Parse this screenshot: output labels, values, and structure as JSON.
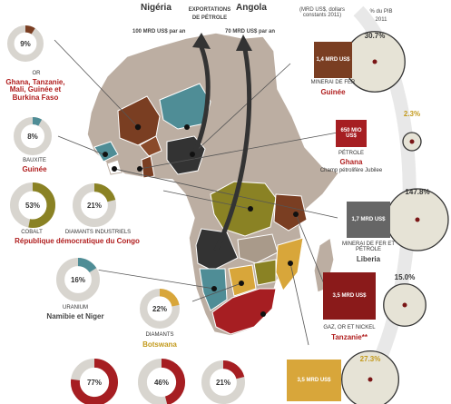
{
  "header": {
    "nigeria": "Nigéria",
    "angola": "Angola",
    "exports_title_1": "EXPORTATIONS",
    "exports_title_2": "DE PÉTROLE",
    "nigeria_value": "100 MRD US$ par an",
    "angola_value": "70 MRD US$ par an",
    "col_usd": "(MRD US$, dollars constants 2011)",
    "col_pib_1": "% du PIB",
    "col_pib_2": "2011"
  },
  "colors": {
    "land": "#bcaea2",
    "border": "#ffffff",
    "brown": "#7a3e22",
    "teal": "#4f8d96",
    "olive": "#8a8224",
    "dark": "#333333",
    "gold": "#d8a63a",
    "red": "#a61e22",
    "darkred": "#8a1a1a",
    "donut_bg": "#d8d5cf",
    "bubble": "#e6e3d6",
    "bubble_center": "#7a1616",
    "arc": "#e8e8e8"
  },
  "chart_data": [
    {
      "type": "pie",
      "title": "Mineral share donuts",
      "items": [
        {
          "value": 9,
          "label": "9%",
          "caption": "OR",
          "country": "Ghana, Tanzanie, Mali, Guinée et Burkina Faso",
          "color": "#7a3e22"
        },
        {
          "value": 8,
          "label": "8%",
          "caption": "BAUXITE",
          "country": "Guinée",
          "color": "#4f8d96"
        },
        {
          "value": 53,
          "label": "53%",
          "caption": "COBALT",
          "country": "",
          "color": "#8a8224"
        },
        {
          "value": 21,
          "label": "21%",
          "caption": "DIAMANTS INDUSTRIELS",
          "country": "",
          "color": "#8a8224"
        },
        {
          "value": 16,
          "label": "16%",
          "caption": "URANIUM",
          "country": "Namibie et Niger",
          "color": "#4f8d96"
        },
        {
          "value": 22,
          "label": "22%",
          "caption": "DIAMANTS",
          "country": "Botswana",
          "color": "#d8a63a"
        },
        {
          "value": 77,
          "label": "77%",
          "caption": "",
          "country": "",
          "color": "#a61e22"
        },
        {
          "value": 46,
          "label": "46%",
          "caption": "",
          "country": "",
          "color": "#a61e22"
        },
        {
          "value": 21,
          "label": "21%",
          "caption": "",
          "country": "",
          "color": "#a61e22"
        }
      ],
      "shared_caption": "République démocratique du Congo"
    },
    {
      "type": "scatter",
      "title": "% du PIB 2011",
      "series": [
        {
          "country": "Guinée",
          "value_label": "1,4 MRD US$",
          "resource": "MINERAI DE FER",
          "pib": 30.7,
          "pib_label": "30.7%"
        },
        {
          "country": "Ghana",
          "value_label": "650 MIO US$",
          "resource": "PÉTROLE",
          "note": "Champ pétrolifère Jubilee",
          "pib": 2.3,
          "pib_label": "2.3%"
        },
        {
          "country": "Liberia",
          "value_label": "1,7 MRD US$",
          "resource": "MINERAI DE FER ET PÉTROLE",
          "pib": 147.8,
          "pib_label": "147.8%"
        },
        {
          "country": "Tanzanie**",
          "value_label": "3,5 MRD US$",
          "resource": "GAZ, OR ET NICKEL",
          "pib": 15.0,
          "pib_label": "15.0%"
        },
        {
          "country": "",
          "value_label": "3,5 MRD US$",
          "resource": "",
          "pib": 27.3,
          "pib_label": "27.3%"
        }
      ]
    }
  ]
}
